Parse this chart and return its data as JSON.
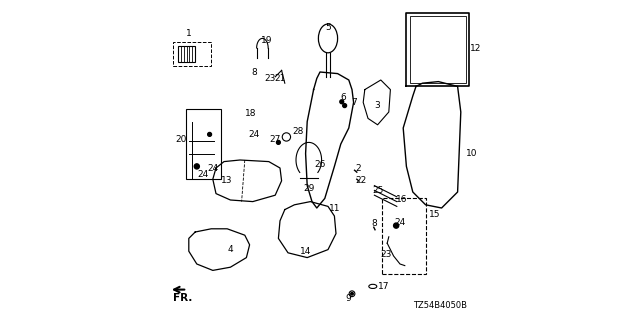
{
  "title": "",
  "diagram_code": "TZ54B4050B",
  "background_color": "#ffffff",
  "line_color": "#000000",
  "figsize": [
    6.4,
    3.2
  ],
  "dpi": 100,
  "font_size_parts": 6.5,
  "font_size_code": 6.0
}
